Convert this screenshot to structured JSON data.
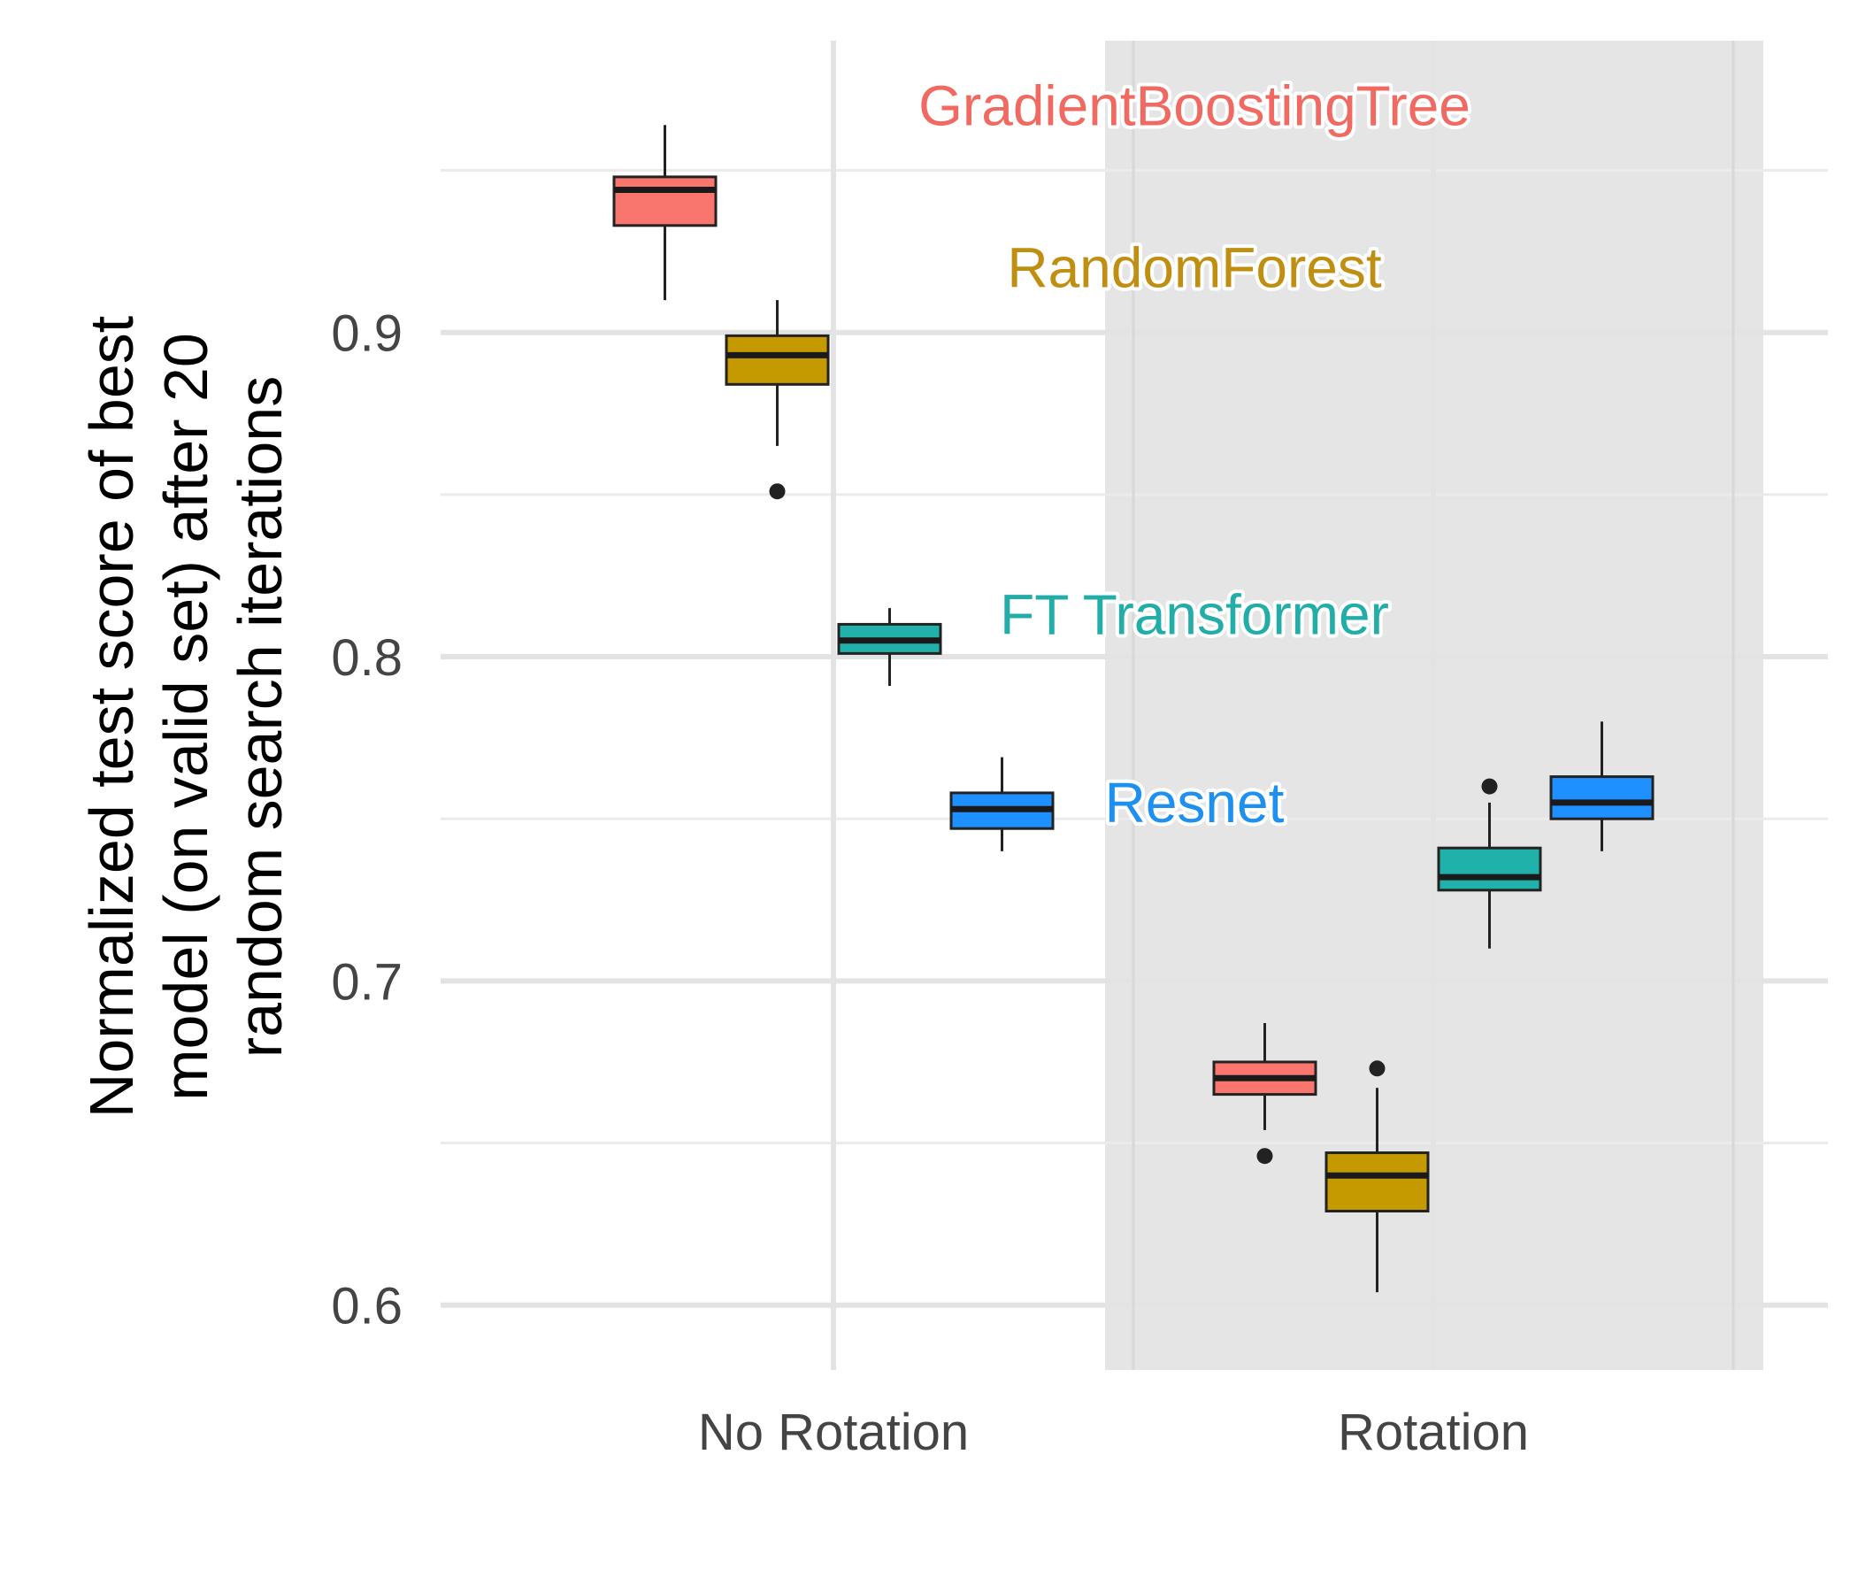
{
  "chart_data": {
    "type": "boxplot",
    "title": "",
    "xlabel": "",
    "ylabel_lines": [
      "Normalized test score of best",
      "model (on valid set) after 20",
      "random search iterations"
    ],
    "categories": [
      "No Rotation",
      "Rotation"
    ],
    "highlighted_category": "Rotation",
    "ylim": [
      0.58,
      0.99
    ],
    "yticks": [
      0.6,
      0.7,
      0.8,
      0.9
    ],
    "ytick_labels": [
      "0.6",
      "0.7",
      "0.8",
      "0.9"
    ],
    "minor_yticks": [
      0.65,
      0.75,
      0.85,
      0.95
    ],
    "grid": true,
    "series": [
      {
        "name": "GradientBoostingTree",
        "color": "#F8766D",
        "label_color": "#F06A62",
        "label_anchor": {
          "category": "No Rotation",
          "y": 0.97
        },
        "boxes": [
          {
            "category": "No Rotation",
            "min": 0.91,
            "q1": 0.933,
            "median": 0.944,
            "q3": 0.948,
            "max": 0.964,
            "outliers": []
          },
          {
            "category": "Rotation",
            "min": 0.654,
            "q1": 0.665,
            "median": 0.67,
            "q3": 0.675,
            "max": 0.687,
            "outliers": [
              0.646
            ]
          }
        ]
      },
      {
        "name": "RandomForest",
        "color": "#C49A00",
        "label_color": "#C08F12",
        "label_anchor": {
          "category": "No Rotation",
          "y": 0.92
        },
        "boxes": [
          {
            "category": "No Rotation",
            "min": 0.865,
            "q1": 0.884,
            "median": 0.893,
            "q3": 0.899,
            "max": 0.91,
            "outliers": [
              0.851
            ]
          },
          {
            "category": "Rotation",
            "min": 0.604,
            "q1": 0.629,
            "median": 0.64,
            "q3": 0.647,
            "max": 0.667,
            "outliers": [
              0.673
            ]
          }
        ]
      },
      {
        "name": "FT Transformer",
        "color": "#20B2AA",
        "label_color": "#22ADA8",
        "label_anchor": {
          "category": "No Rotation",
          "y": 0.813
        },
        "boxes": [
          {
            "category": "No Rotation",
            "min": 0.791,
            "q1": 0.801,
            "median": 0.805,
            "q3": 0.81,
            "max": 0.815,
            "outliers": []
          },
          {
            "category": "Rotation",
            "min": 0.71,
            "q1": 0.728,
            "median": 0.732,
            "q3": 0.741,
            "max": 0.755,
            "outliers": [
              0.76
            ]
          }
        ]
      },
      {
        "name": "Resnet",
        "color": "#1E90FF",
        "label_color": "#1E90F0",
        "label_anchor": {
          "category": "No Rotation",
          "y": 0.755
        },
        "boxes": [
          {
            "category": "No Rotation",
            "min": 0.74,
            "q1": 0.747,
            "median": 0.753,
            "q3": 0.758,
            "max": 0.769,
            "outliers": []
          },
          {
            "category": "Rotation",
            "min": 0.74,
            "q1": 0.75,
            "median": 0.755,
            "q3": 0.763,
            "max": 0.78,
            "outliers": []
          }
        ]
      }
    ]
  }
}
